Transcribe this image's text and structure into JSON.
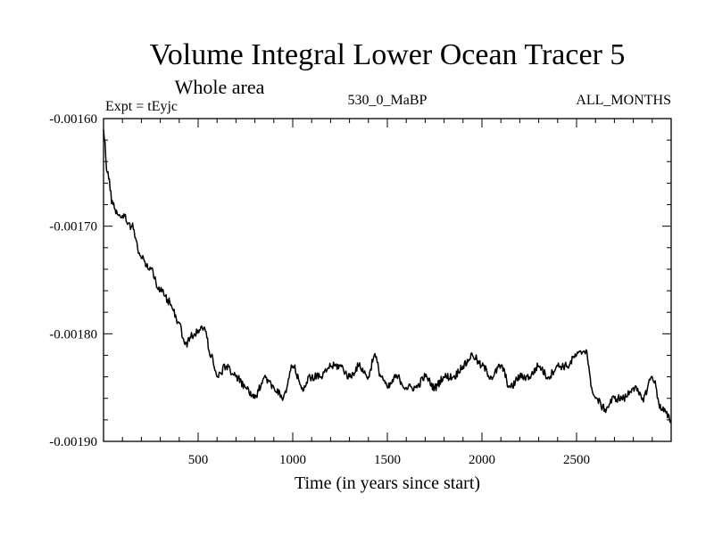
{
  "chart_data": {
    "type": "line",
    "title": "Volume Integral Lower Ocean Tracer 5",
    "subtitle": "Whole area",
    "annotations": {
      "experiment": "Expt = tEyjc",
      "period": "530_0_MaBP",
      "months": "ALL_MONTHS"
    },
    "xlabel": "Time (in years since start)",
    "ylabel": "",
    "xlim": [
      0,
      3000
    ],
    "ylim": [
      -0.0019,
      -0.0016
    ],
    "x_ticks": [
      500,
      1000,
      1500,
      2000,
      2500
    ],
    "x_tick_labels": [
      "500",
      "1000",
      "1500",
      "2000",
      "2500"
    ],
    "y_ticks": [
      -0.0016,
      -0.0017,
      -0.0018,
      -0.0019
    ],
    "y_tick_labels": [
      "-0.00160",
      "-0.00170",
      "-0.00180",
      "-0.00190"
    ],
    "grid": false,
    "series": [
      {
        "name": "Volume Integral Lower Ocean Tracer 5",
        "color": "#000000",
        "x": [
          0,
          20,
          50,
          80,
          100,
          150,
          200,
          250,
          300,
          350,
          400,
          430,
          480,
          530,
          570,
          600,
          650,
          700,
          750,
          800,
          850,
          900,
          950,
          1000,
          1050,
          1100,
          1150,
          1200,
          1250,
          1300,
          1350,
          1400,
          1430,
          1470,
          1500,
          1550,
          1600,
          1650,
          1700,
          1750,
          1800,
          1850,
          1900,
          1950,
          2000,
          2050,
          2100,
          2150,
          2200,
          2250,
          2300,
          2350,
          2400,
          2450,
          2500,
          2550,
          2580,
          2600,
          2650,
          2700,
          2750,
          2800,
          2850,
          2900,
          2950,
          3000
        ],
        "y": [
          -0.00161,
          -0.00165,
          -0.00168,
          -0.00169,
          -0.00169,
          -0.0017,
          -0.00173,
          -0.00174,
          -0.00176,
          -0.00177,
          -0.00179,
          -0.00181,
          -0.0018,
          -0.0017942,
          -0.00182,
          -0.00184,
          -0.00183,
          -0.00184,
          -0.00185,
          -0.00186,
          -0.00184,
          -0.00185,
          -0.00186,
          -0.00183,
          -0.00185,
          -0.00184,
          -0.00184,
          -0.00183,
          -0.00183,
          -0.00184,
          -0.00183,
          -0.00184,
          -0.00182,
          -0.00184,
          -0.00185,
          -0.00184,
          -0.00185,
          -0.00185,
          -0.00184,
          -0.00185,
          -0.00184,
          -0.00184,
          -0.00183,
          -0.00182,
          -0.00183,
          -0.00184,
          -0.00183,
          -0.00185,
          -0.00184,
          -0.00184,
          -0.00183,
          -0.00184,
          -0.00183,
          -0.00183,
          -0.00182,
          -0.001815,
          -0.00185,
          -0.00186,
          -0.00187,
          -0.00186,
          -0.00186,
          -0.00185,
          -0.00186,
          -0.00184,
          -0.00187,
          -0.00188
        ]
      }
    ]
  }
}
